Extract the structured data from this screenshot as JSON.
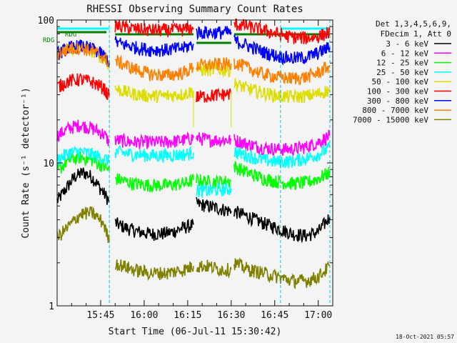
{
  "chart_data": {
    "type": "line",
    "title": "RHESSI Observing Summary Count Rates",
    "xlabel": "Start Time (06-Jul-11 15:30:42)",
    "ylabel": "Count Rate (s⁻¹ detector⁻¹)",
    "y_scale": "log",
    "ylim": [
      1,
      100
    ],
    "x_range_min": [
      0,
      95
    ],
    "x_ticks": [
      {
        "t": 15,
        "label": "15:45"
      },
      {
        "t": 30,
        "label": "16:00"
      },
      {
        "t": 45,
        "label": "16:15"
      },
      {
        "t": 60,
        "label": "16:30"
      },
      {
        "t": 75,
        "label": "16:45"
      },
      {
        "t": 90,
        "label": "17:00"
      }
    ],
    "y_ticks": [
      {
        "v": 1,
        "label": "1"
      },
      {
        "v": 10,
        "label": "10"
      },
      {
        "v": 100,
        "label": "100"
      }
    ],
    "legend_title": [
      "Det 1,3,4,5,6,9,",
      "FDecim 1, Att 0"
    ],
    "series": [
      {
        "name": "3 - 6 keV",
        "color": "#000000",
        "segments": [
          {
            "x": [
              0,
              3,
              6,
              9,
              12,
              15,
              18
            ],
            "y": [
              5.4,
              6.6,
              8.0,
              8.6,
              8.0,
              6.6,
              5.4
            ]
          },
          {
            "x": [
              20,
              24,
              28,
              32,
              36,
              40,
              43,
              47
            ],
            "y": [
              3.8,
              3.5,
              3.3,
              3.2,
              3.2,
              3.3,
              3.5,
              3.7
            ]
          },
          {
            "x": [
              48,
              52,
              56,
              60
            ],
            "y": [
              5.2,
              5.0,
              4.8,
              4.6
            ]
          },
          {
            "x": [
              61,
              66,
              71,
              76,
              81,
              86,
              90,
              94
            ],
            "y": [
              4.6,
              4.2,
              3.8,
              3.5,
              3.2,
              3.1,
              3.3,
              4.2
            ]
          }
        ]
      },
      {
        "name": "6 - 12 keV",
        "color": "#ff00ff",
        "segments": [
          {
            "x": [
              0,
              4,
              8,
              12,
              16,
              18
            ],
            "y": [
              15.5,
              17.5,
              18.5,
              17.5,
              16,
              14
            ]
          },
          {
            "x": [
              20,
              26,
              32,
              38,
              44,
              47
            ],
            "y": [
              14.5,
              14,
              14,
              14,
              14.5,
              15
            ]
          },
          {
            "x": [
              48,
              52,
              56,
              60
            ],
            "y": [
              15,
              14.5,
              14.5,
              14.5
            ]
          },
          {
            "x": [
              61,
              66,
              71,
              76,
              81,
              86,
              90,
              94
            ],
            "y": [
              14.5,
              13.5,
              12.8,
              12.5,
              12.5,
              13,
              14,
              15.5
            ]
          }
        ]
      },
      {
        "name": "12 - 25 keV",
        "color": "#00ff00",
        "segments": [
          {
            "x": [
              0,
              4,
              8,
              12,
              16,
              18
            ],
            "y": [
              8.8,
              10.5,
              11,
              10.5,
              9.5,
              8.8
            ]
          },
          {
            "x": [
              20,
              26,
              32,
              38,
              44,
              47
            ],
            "y": [
              7.8,
              7.2,
              7,
              7,
              7.2,
              7.6
            ]
          },
          {
            "x": [
              48,
              52,
              56,
              60
            ],
            "y": [
              7.6,
              7.4,
              7.4,
              7.5
            ]
          },
          {
            "x": [
              61,
              66,
              71,
              76,
              81,
              86,
              90,
              94
            ],
            "y": [
              9.5,
              8.5,
              7.8,
              7.4,
              7.2,
              7.3,
              7.8,
              8.6
            ]
          }
        ]
      },
      {
        "name": "25 - 50 keV",
        "color": "#00ffff",
        "segments": [
          {
            "x": [
              0,
              4,
              8,
              12,
              16,
              18
            ],
            "y": [
              10.5,
              11.8,
              12,
              11.5,
              10.8,
              10.3
            ]
          },
          {
            "x": [
              20,
              26,
              32,
              38,
              44,
              47
            ],
            "y": [
              12,
              11.5,
              11.3,
              11.3,
              11.5,
              11.8
            ]
          },
          {
            "x": [
              48,
              52,
              56,
              60
            ],
            "y": [
              6.4,
              6.4,
              6.5,
              6.6
            ]
          },
          {
            "x": [
              61,
              66,
              71,
              76,
              81,
              86,
              90,
              94
            ],
            "y": [
              12,
              11.2,
              10.5,
              10.2,
              10.3,
              10.8,
              11.5,
              12.8
            ]
          }
        ]
      },
      {
        "name": "50 - 100 keV",
        "color": "#dddd00",
        "segments": [
          {
            "x": [
              0,
              4,
              8,
              12,
              16,
              18
            ],
            "y": [
              58,
              63,
              64,
              61,
              55,
              49
            ]
          },
          {
            "x": [
              20,
              26,
              32,
              38,
              44,
              47
            ],
            "y": [
              33,
              30.5,
              29.5,
              29.5,
              30.5,
              32
            ]
          },
          {
            "x": [
              48,
              52,
              56,
              60
            ],
            "y": [
              45,
              45,
              45,
              45
            ]
          },
          {
            "x": [
              61,
              66,
              71,
              76,
              81,
              86,
              90,
              94
            ],
            "y": [
              36,
              33,
              31,
              29.5,
              29,
              29.5,
              30.5,
              32.5
            ]
          }
        ]
      },
      {
        "name": "100 - 300 keV",
        "color": "#ff0000",
        "segments": [
          {
            "x": [
              0,
              4,
              8,
              12,
              16,
              18
            ],
            "y": [
              34,
              37.5,
              38.5,
              37,
              33.5,
              29
            ]
          },
          {
            "x": [
              20,
              26,
              32,
              38,
              44,
              47
            ],
            "y": [
              92,
              87,
              85,
              85,
              86,
              88
            ]
          },
          {
            "x": [
              48,
              52,
              56,
              60
            ],
            "y": [
              29,
              29.5,
              30,
              30.5
            ]
          },
          {
            "x": [
              61,
              66,
              71,
              76,
              81,
              86,
              90,
              94
            ],
            "y": [
              94,
              90,
              85,
              80,
              76,
              75,
              77,
              82
            ]
          }
        ]
      },
      {
        "name": "300 - 800 keV",
        "color": "#0000ff",
        "segments": [
          {
            "x": [
              0,
              4,
              8,
              12,
              16,
              18
            ],
            "y": [
              58,
              64,
              66,
              63,
              57,
              51
            ]
          },
          {
            "x": [
              20,
              26,
              32,
              38,
              44,
              47
            ],
            "y": [
              70,
              65,
              62,
              62,
              64,
              68
            ]
          },
          {
            "x": [
              48,
              52,
              56,
              60
            ],
            "y": [
              82,
              82,
              82,
              82
            ]
          },
          {
            "x": [
              61,
              66,
              71,
              76,
              81,
              86,
              90,
              94
            ],
            "y": [
              72,
              66,
              60,
              56,
              54,
              55,
              59,
              65
            ]
          }
        ]
      },
      {
        "name": "800 - 7000 keV",
        "color": "#ff8000",
        "segments": [
          {
            "x": [
              0,
              4,
              8,
              12,
              16,
              18
            ],
            "y": [
              58,
              63,
              64,
              61,
              55,
              50
            ]
          },
          {
            "x": [
              20,
              26,
              32,
              38,
              44,
              47
            ],
            "y": [
              52,
              46,
              42,
              41,
              43,
              47
            ]
          },
          {
            "x": [
              48,
              52,
              56,
              60
            ],
            "y": [
              48,
              48.5,
              49,
              49.5
            ]
          },
          {
            "x": [
              61,
              66,
              71,
              76,
              81,
              86,
              90,
              94
            ],
            "y": [
              51,
              46,
              42,
              40,
              39,
              40,
              43,
              48
            ]
          }
        ]
      },
      {
        "name": "7000 - 15000 keV",
        "color": "#808000",
        "segments": [
          {
            "x": [
              0,
              4,
              8,
              12,
              16,
              18
            ],
            "y": [
              3.0,
              3.6,
              4.4,
              4.5,
              3.8,
              2.8
            ]
          },
          {
            "x": [
              20,
              26,
              32,
              38,
              44,
              47
            ],
            "y": [
              2.0,
              1.8,
              1.7,
              1.7,
              1.8,
              1.9
            ]
          },
          {
            "x": [
              48,
              52,
              56,
              60
            ],
            "y": [
              1.9,
              1.9,
              1.8,
              1.8
            ]
          },
          {
            "x": [
              61,
              66,
              71,
              76,
              81,
              86,
              90,
              94
            ],
            "y": [
              2.0,
              1.8,
              1.7,
              1.6,
              1.5,
              1.5,
              1.6,
              1.9
            ]
          }
        ]
      }
    ],
    "night_bars": [
      {
        "t0": 0,
        "t1": 18
      },
      {
        "t0": 77,
        "t1": 94
      }
    ],
    "saa_bars": [
      {
        "t0": 20,
        "t1": 47
      },
      {
        "t0": 48,
        "t1": 60
      },
      {
        "t0": 61,
        "t1": 94
      },
      {
        "t0": 0,
        "t1": 17
      }
    ],
    "rdg_labels": [
      {
        "label": "RDG",
        "level": 90
      },
      {
        "label": "RDG",
        "level": 76
      }
    ],
    "cyan_markers_min": [
      0,
      18,
      77,
      94
    ],
    "attenuator_steps_min": [
      47,
      60
    ],
    "footer_timestamp": "18-Oct-2021 05:57"
  }
}
